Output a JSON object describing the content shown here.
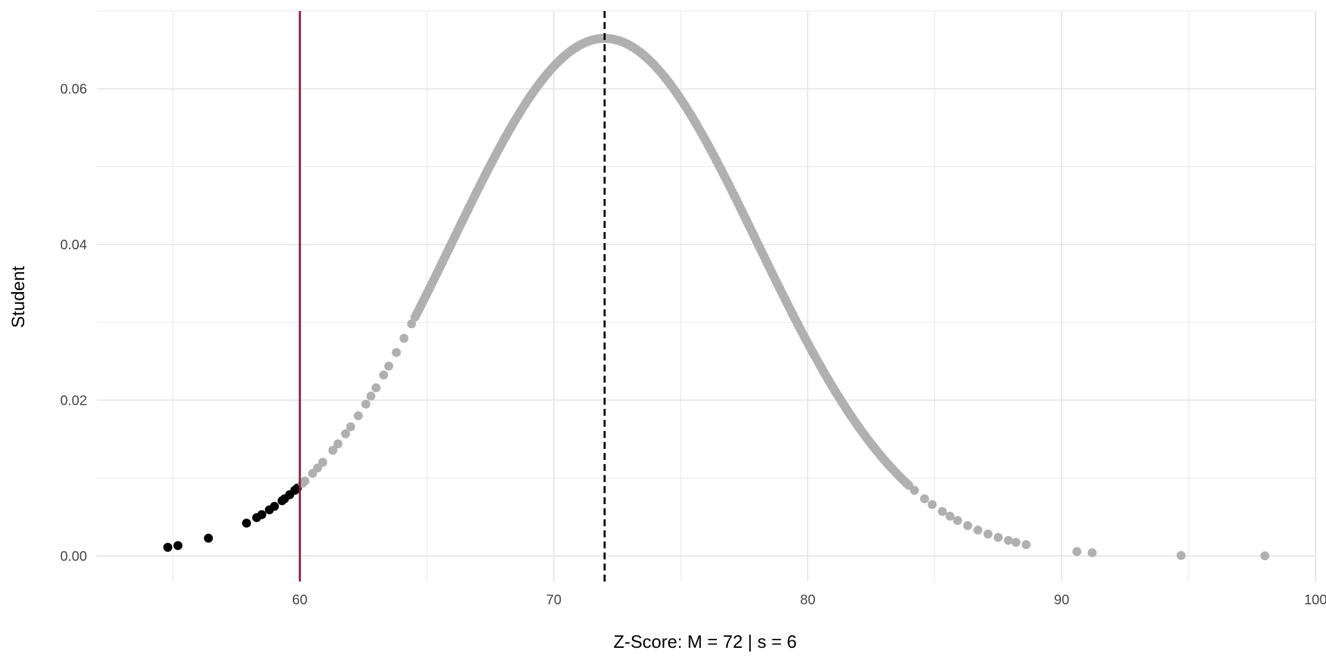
{
  "chart_data": {
    "type": "scatter",
    "title": "",
    "xlabel": "Z-Score: M = 72 | s = 6",
    "ylabel": "Student",
    "xlim": [
      52,
      100
    ],
    "ylim": [
      -0.0033,
      0.07
    ],
    "x_ticks": [
      60,
      70,
      80,
      90,
      100
    ],
    "x_minor_ticks": [
      55,
      65,
      75,
      85,
      95
    ],
    "y_ticks": [
      0.0,
      0.02,
      0.04,
      0.06
    ],
    "y_tick_labels": [
      "0.00",
      "0.02",
      "0.04",
      "0.06"
    ],
    "y_minor_ticks": [
      0.01,
      0.03,
      0.05,
      0.07
    ],
    "grid": true,
    "legend": "none",
    "distribution": {
      "mean": 72,
      "sd": 6
    },
    "cutoff_line": {
      "x": 60,
      "color": "#8b1a3d"
    },
    "mean_line": {
      "x": 72,
      "color": "#000000",
      "style": "dashed"
    },
    "point_colors": {
      "below_cutoff": "#000000",
      "above_cutoff": "#b0b0b0"
    },
    "points": [
      54.8,
      55.2,
      56.4,
      57.9,
      58.3,
      58.5,
      58.8,
      59.0,
      59.3,
      59.4,
      59.6,
      59.8,
      59.9,
      60.1,
      60.2,
      60.5,
      60.7,
      60.9,
      61.3,
      61.5,
      61.8,
      62.0,
      62.3,
      62.6,
      62.8,
      63.0,
      63.3,
      63.5,
      63.8,
      64.1,
      64.4,
      64.6,
      64.9,
      65.1,
      65.4,
      65.6,
      65.9,
      66.1,
      66.4,
      66.6,
      66.9,
      67.1,
      67.4,
      67.6,
      67.9,
      68.1,
      68.4,
      68.6,
      68.9,
      69.1,
      69.4,
      69.6,
      69.9,
      70.1,
      70.4,
      70.6,
      70.9,
      71.1,
      71.4,
      71.6,
      71.9,
      72.1,
      72.4,
      72.6,
      72.9,
      73.1,
      73.4,
      73.6,
      73.9,
      74.1,
      74.4,
      74.6,
      74.9,
      75.1,
      75.4,
      75.6,
      75.9,
      76.1,
      76.4,
      76.6,
      76.9,
      77.1,
      77.4,
      77.6,
      77.9,
      78.1,
      78.4,
      78.6,
      78.9,
      79.1,
      79.4,
      79.6,
      79.9,
      80.2,
      80.5,
      80.8,
      81.1,
      81.4,
      81.7,
      82.0,
      82.3,
      82.6,
      82.9,
      83.2,
      83.6,
      83.9,
      84.2,
      84.6,
      84.9,
      85.3,
      85.6,
      85.9,
      86.3,
      86.7,
      87.1,
      87.5,
      87.9,
      88.2,
      88.6,
      90.6,
      91.2,
      94.7,
      98.0
    ]
  }
}
